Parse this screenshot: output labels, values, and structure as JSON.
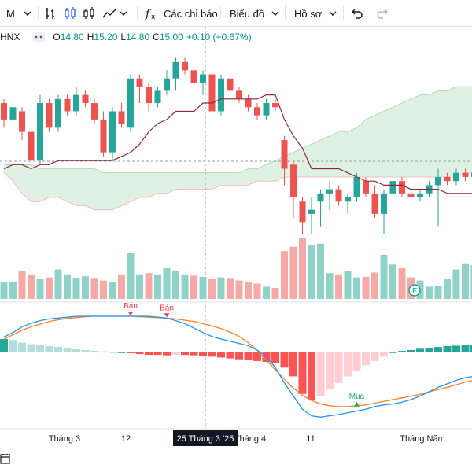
{
  "toolbar": {
    "interval": "M",
    "indicators_label": "Các chỉ báo",
    "chart_menu_label": "Biểu đồ",
    "profile_menu_label": "Hồ sơ",
    "indicators_icon": "fx-icon",
    "bar_icon": "bar-chart-icon",
    "candle_icon": "candle-icon",
    "hollow_icon": "hollow-candle-icon",
    "line_icon": "line-chart-icon",
    "undo_icon": "undo-icon",
    "redo_icon": "redo-icon"
  },
  "legend": {
    "symbol": "HNX",
    "open_label": "O",
    "open": "14.80",
    "high_label": "H",
    "high": "15.20",
    "low_label": "L",
    "low": "14.80",
    "close_label": "C",
    "close": "15.00",
    "change": "+0.10 (+0.67%)"
  },
  "colors": {
    "up": "#26a69a",
    "down": "#ef5350",
    "vol_up": "#8fd3c8",
    "vol_down": "#f7a9a7",
    "cloud_up": "#dff1e3",
    "cloud_down": "#fbdada",
    "base_line": "#8b2b36",
    "macd_line": "#2196f3",
    "signal_line": "#ff7f27"
  },
  "chart_data": {
    "type": "candlestick",
    "x_labels": [
      "Tháng 3",
      "12",
      "25 Tháng 3 '25",
      "Tháng 4",
      "11",
      "Tháng Năm"
    ],
    "crosshair_label": "25 Tháng 3 '25",
    "price": {
      "ylim": [
        12.0,
        16.6
      ],
      "candles": [
        [
          15.2,
          14.8,
          15.3,
          14.6
        ],
        [
          14.8,
          15.1,
          15.3,
          14.6
        ],
        [
          15.0,
          14.5,
          15.1,
          14.3
        ],
        [
          14.5,
          13.8,
          14.6,
          13.5
        ],
        [
          13.8,
          15.2,
          15.4,
          13.7
        ],
        [
          15.2,
          14.6,
          15.3,
          14.5
        ],
        [
          14.6,
          15.3,
          15.4,
          14.5
        ],
        [
          15.3,
          15.0,
          15.4,
          14.9
        ],
        [
          15.0,
          15.4,
          15.6,
          14.9
        ],
        [
          15.4,
          15.2,
          15.5,
          15.1
        ],
        [
          15.2,
          14.8,
          15.3,
          14.7
        ],
        [
          14.8,
          14.0,
          15.0,
          13.9
        ],
        [
          14.0,
          15.0,
          15.1,
          13.8
        ],
        [
          15.0,
          14.7,
          15.2,
          14.6
        ],
        [
          14.6,
          15.8,
          15.9,
          14.5
        ],
        [
          15.8,
          15.6,
          15.9,
          15.2
        ],
        [
          15.6,
          15.2,
          15.7,
          15.0
        ],
        [
          15.2,
          15.5,
          15.6,
          15.1
        ],
        [
          15.5,
          15.8,
          16.0,
          15.4
        ],
        [
          15.8,
          16.2,
          16.3,
          15.5
        ],
        [
          16.2,
          16.0,
          16.3,
          15.9
        ],
        [
          16.0,
          15.7,
          16.0,
          14.7
        ],
        [
          15.7,
          15.9,
          16.0,
          15.4
        ],
        [
          15.9,
          15.0,
          16.0,
          14.9
        ],
        [
          15.0,
          15.8,
          15.9,
          14.9
        ],
        [
          15.8,
          15.5,
          15.9,
          15.4
        ],
        [
          15.5,
          15.3,
          15.6,
          15.2
        ],
        [
          15.3,
          15.1,
          15.4,
          15.0
        ],
        [
          15.1,
          14.9,
          15.2,
          14.8
        ],
        [
          14.9,
          15.2,
          15.3,
          14.8
        ],
        [
          15.2,
          15.1,
          15.3,
          15.0
        ],
        [
          14.3,
          13.6,
          14.4,
          13.2
        ],
        [
          13.7,
          12.9,
          13.8,
          12.4
        ],
        [
          12.8,
          12.3,
          12.9,
          12.0
        ],
        [
          12.5,
          12.6,
          12.9,
          12.0
        ],
        [
          12.8,
          13.0,
          13.1,
          12.2
        ],
        [
          13.0,
          13.1,
          13.3,
          12.6
        ],
        [
          13.1,
          12.8,
          13.2,
          12.7
        ],
        [
          12.8,
          12.9,
          13.0,
          12.5
        ],
        [
          12.9,
          13.4,
          13.5,
          12.8
        ],
        [
          13.3,
          13.0,
          13.4,
          12.9
        ],
        [
          13.0,
          12.5,
          13.2,
          12.4
        ],
        [
          12.5,
          13.0,
          13.1,
          12.0
        ],
        [
          13.0,
          13.3,
          13.5,
          12.8
        ],
        [
          13.3,
          13.0,
          13.4,
          12.9
        ],
        [
          13.0,
          12.9,
          13.1,
          12.8
        ],
        [
          12.9,
          13.0,
          13.1,
          12.8
        ],
        [
          13.0,
          13.2,
          13.3,
          12.9
        ],
        [
          13.2,
          13.4,
          13.6,
          12.2
        ],
        [
          13.4,
          13.3,
          13.5,
          13.2
        ],
        [
          13.3,
          13.5,
          13.6,
          13.2
        ],
        [
          13.5,
          13.4,
          13.6,
          13.3
        ],
        [
          13.4,
          13.5,
          13.6,
          13.3
        ]
      ],
      "base_line": [
        13.6,
        13.7,
        13.7,
        13.6,
        13.7,
        13.7,
        13.8,
        13.8,
        13.8,
        13.8,
        13.8,
        13.8,
        13.8,
        13.9,
        14.0,
        14.2,
        14.5,
        14.7,
        14.8,
        15.0,
        15.0,
        15.0,
        15.2,
        15.2,
        15.3,
        15.3,
        15.3,
        15.3,
        15.3,
        15.4,
        15.4,
        14.8,
        14.4,
        14.1,
        13.6,
        13.6,
        13.6,
        13.6,
        13.5,
        13.4,
        13.3,
        13.3,
        13.2,
        13.2,
        13.2,
        13.1,
        13.1,
        13.1,
        13.1,
        13.0,
        13.0,
        13.0,
        13.0
      ],
      "cloud_top": [
        13.7,
        13.7,
        13.7,
        13.7,
        13.6,
        13.6,
        13.6,
        13.6,
        13.6,
        13.6,
        13.6,
        13.5,
        13.5,
        13.5,
        13.5,
        13.5,
        13.5,
        13.5,
        13.5,
        13.5,
        13.5,
        13.5,
        13.5,
        13.5,
        13.5,
        13.5,
        13.5,
        13.6,
        13.6,
        13.7,
        13.8,
        13.9,
        14.0,
        14.1,
        14.2,
        14.3,
        14.4,
        14.5,
        14.5,
        14.6,
        14.8,
        14.9,
        15.0,
        15.1,
        15.2,
        15.3,
        15.4,
        15.4,
        15.5,
        15.5,
        15.6,
        15.6,
        15.6
      ],
      "cloud_bottom": [
        13.5,
        13.3,
        13.0,
        12.8,
        12.8,
        12.9,
        12.9,
        12.8,
        12.7,
        12.7,
        12.6,
        12.6,
        12.6,
        12.7,
        12.8,
        12.9,
        12.9,
        13.0,
        13.0,
        13.1,
        13.1,
        13.1,
        13.1,
        13.1,
        13.2,
        13.2,
        13.2,
        13.2,
        13.3,
        13.3,
        13.3,
        13.4,
        13.4,
        13.4,
        13.4,
        13.4,
        13.4,
        13.4,
        13.4,
        13.4,
        13.4,
        13.4,
        13.4,
        13.4,
        13.4,
        13.4,
        13.4,
        13.4,
        13.4,
        13.4,
        13.4,
        13.5,
        13.5
      ]
    },
    "volume": [
      0.28,
      0.28,
      0.45,
      0.4,
      0.32,
      0.35,
      0.48,
      0.4,
      0.34,
      0.37,
      0.33,
      0.3,
      0.28,
      0.4,
      0.75,
      0.4,
      0.42,
      0.4,
      0.5,
      0.45,
      0.4,
      0.38,
      0.36,
      0.32,
      0.35,
      0.33,
      0.3,
      0.28,
      0.25,
      0.2,
      0.18,
      0.78,
      0.85,
      1.0,
      0.88,
      0.9,
      0.42,
      0.4,
      0.45,
      0.35,
      0.36,
      0.43,
      0.72,
      0.56,
      0.5,
      0.35,
      0.3,
      0.2,
      0.22,
      0.32,
      0.48,
      0.58,
      0.55
    ],
    "volume_up": [
      true,
      true,
      false,
      false,
      true,
      false,
      true,
      true,
      true,
      true,
      false,
      false,
      true,
      false,
      true,
      true,
      false,
      true,
      true,
      true,
      true,
      false,
      true,
      false,
      true,
      false,
      false,
      false,
      false,
      true,
      false,
      false,
      false,
      false,
      true,
      true,
      true,
      false,
      true,
      true,
      false,
      false,
      true,
      true,
      false,
      false,
      true,
      true,
      true,
      true,
      true,
      true,
      true
    ],
    "macd": {
      "ylim": [
        -1.6,
        1.0
      ],
      "histogram": [
        0.3,
        0.28,
        0.22,
        0.18,
        0.16,
        0.14,
        0.12,
        0.09,
        0.07,
        0.05,
        0.03,
        0.02,
        0.0,
        0.0,
        -0.02,
        -0.04,
        -0.06,
        -0.06,
        -0.07,
        -0.06,
        -0.06,
        -0.07,
        -0.08,
        -0.1,
        -0.12,
        -0.14,
        -0.16,
        -0.18,
        -0.2,
        -0.22,
        -0.25,
        -0.35,
        -0.55,
        -0.95,
        -1.1,
        -1.0,
        -0.85,
        -0.7,
        -0.55,
        -0.42,
        -0.3,
        -0.2,
        -0.1,
        0.0,
        0.03,
        0.05,
        0.08,
        0.1,
        0.12,
        0.14,
        0.15,
        0.16,
        0.16
      ],
      "macd_line": [
        0.35,
        0.45,
        0.58,
        0.66,
        0.72,
        0.76,
        0.78,
        0.8,
        0.82,
        0.82,
        0.82,
        0.82,
        0.82,
        0.82,
        0.82,
        0.82,
        0.82,
        0.8,
        0.78,
        0.72,
        0.65,
        0.55,
        0.45,
        0.36,
        0.3,
        0.25,
        0.2,
        0.15,
        0.05,
        -0.1,
        -0.35,
        -0.7,
        -1.0,
        -1.3,
        -1.45,
        -1.48,
        -1.45,
        -1.42,
        -1.38,
        -1.34,
        -1.3,
        -1.24,
        -1.2,
        -1.18,
        -1.14,
        -1.08,
        -1.0,
        -0.9,
        -0.8,
        -0.72,
        -0.64,
        -0.58,
        -0.55
      ],
      "signal_line": [
        0.3,
        0.4,
        0.5,
        0.58,
        0.64,
        0.7,
        0.74,
        0.77,
        0.79,
        0.81,
        0.82,
        0.82,
        0.82,
        0.82,
        0.82,
        0.81,
        0.8,
        0.79,
        0.78,
        0.76,
        0.73,
        0.7,
        0.65,
        0.6,
        0.54,
        0.46,
        0.36,
        0.22,
        0.04,
        -0.18,
        -0.4,
        -0.62,
        -0.82,
        -0.98,
        -1.1,
        -1.18,
        -1.22,
        -1.24,
        -1.24,
        -1.22,
        -1.2,
        -1.16,
        -1.12,
        -1.08,
        -1.04,
        -1.0,
        -0.96,
        -0.9,
        -0.85,
        -0.8,
        -0.74,
        -0.68,
        -0.64
      ],
      "markers": [
        {
          "label": "Bán",
          "type": "sell",
          "index": 14
        },
        {
          "label": "Bán",
          "type": "sell",
          "index": 18
        },
        {
          "label": "Mua",
          "type": "buy",
          "index": 39
        }
      ]
    },
    "badge": "F"
  }
}
